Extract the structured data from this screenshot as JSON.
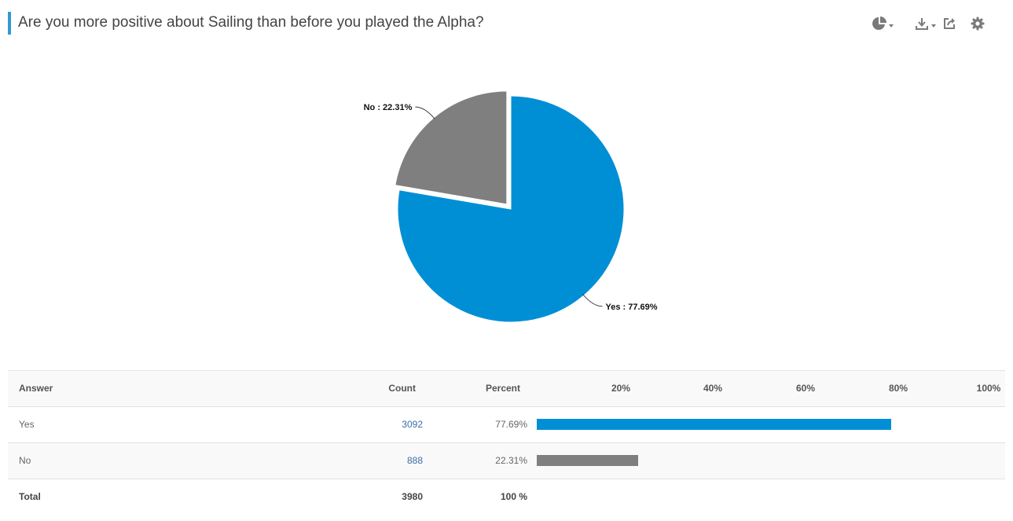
{
  "header": {
    "title": "Are you more positive about Sailing than before you played the Alpha?"
  },
  "toolbar": {
    "icons": [
      "chart-type-icon",
      "download-icon",
      "share-icon",
      "gear-icon"
    ]
  },
  "colors": {
    "accent": "#3399d6",
    "yes": "#008fd5",
    "no": "#7f7f7f"
  },
  "chart_data": [
    {
      "type": "pie",
      "slices": [
        {
          "label": "Yes",
          "value": 77.69,
          "color": "#008fd5",
          "display": "Yes : 77.69%"
        },
        {
          "label": "No",
          "value": 22.31,
          "color": "#7f7f7f",
          "display": "No : 22.31%"
        }
      ]
    },
    {
      "type": "table",
      "columns": {
        "answer": "Answer",
        "count": "Count",
        "percent": "Percent"
      },
      "axis_ticks": [
        "20%",
        "40%",
        "60%",
        "80%",
        "100%"
      ],
      "rows": [
        {
          "answer": "Yes",
          "count": "3092",
          "percent": "77.69%",
          "value": 77.69,
          "color": "#008fd5"
        },
        {
          "answer": "No",
          "count": "888",
          "percent": "22.31%",
          "value": 22.31,
          "color": "#7f7f7f"
        }
      ],
      "total": {
        "label": "Total",
        "count": "3980",
        "percent": "100 %"
      }
    }
  ]
}
